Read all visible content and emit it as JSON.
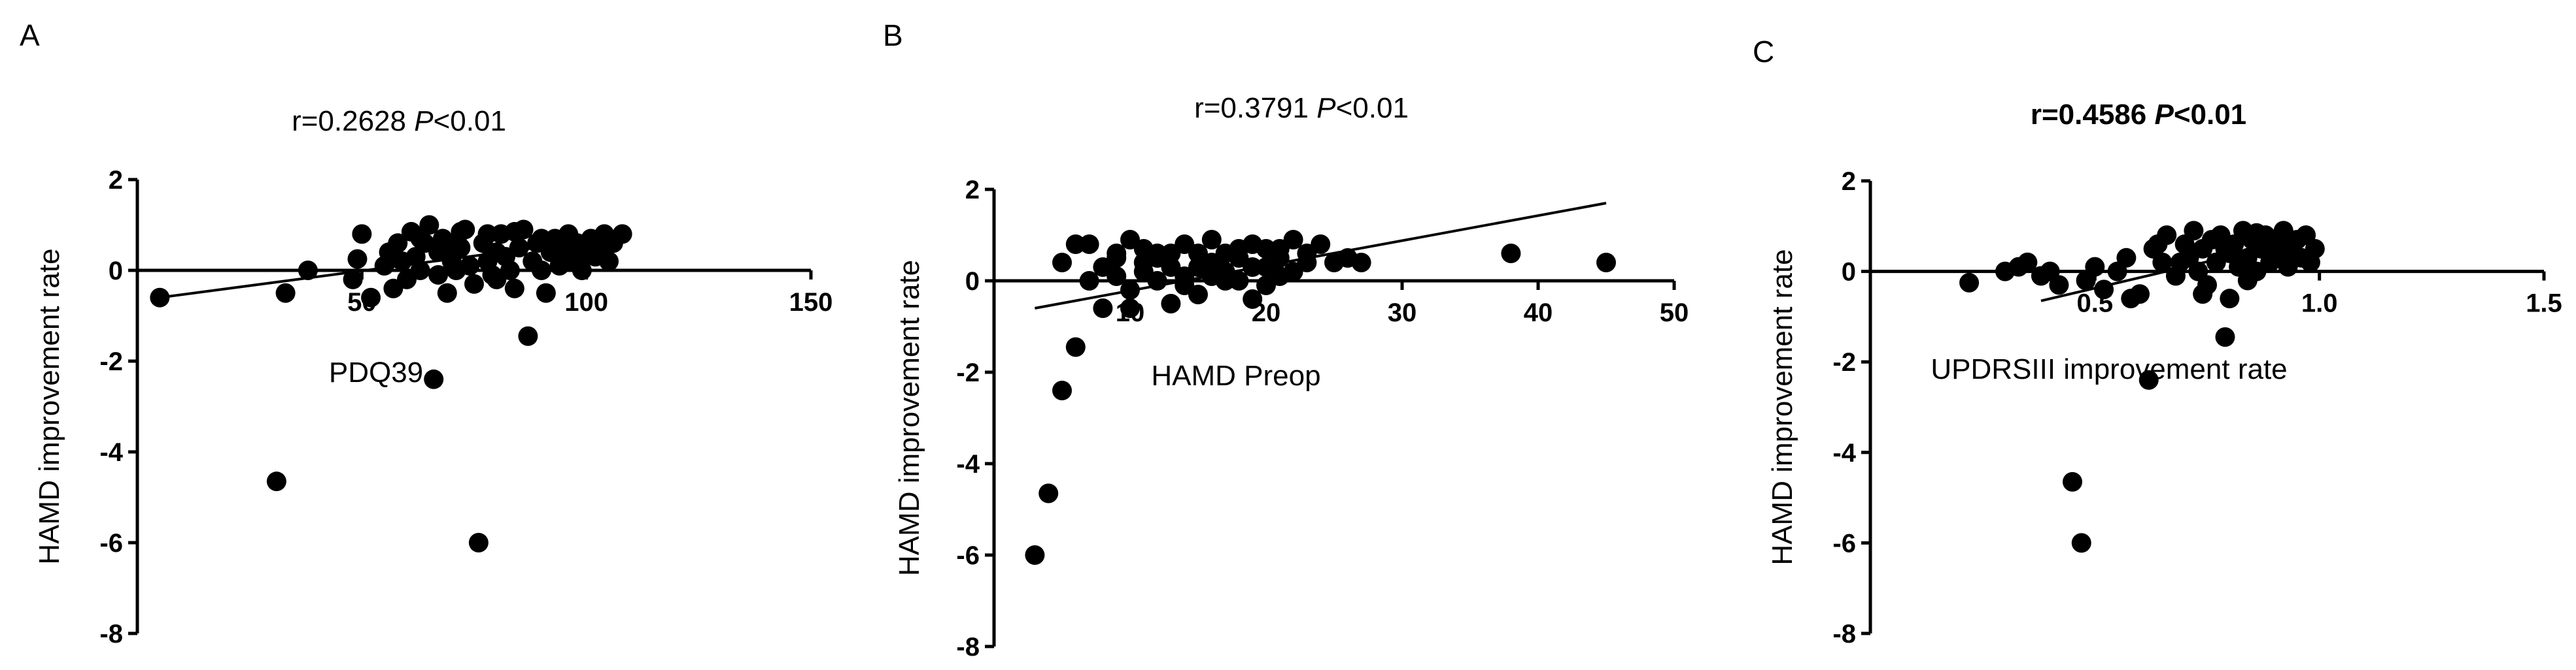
{
  "chart_data": [
    {
      "type": "scatter",
      "panel": "A",
      "title_r": "r=0.2628 ",
      "title_p": "P",
      "title_rest": "<0.01",
      "title_bold": false,
      "xlabel": "PDQ39",
      "ylabel": "HAMD improvement rate",
      "xlim": [
        0,
        150
      ],
      "ylim": [
        -8,
        2
      ],
      "xticks": [
        {
          "v": 50,
          "label": "50"
        },
        {
          "v": 100,
          "label": "100"
        },
        {
          "v": 150,
          "label": "150"
        }
      ],
      "yticks": [
        {
          "v": 2,
          "label": "2"
        },
        {
          "v": 0,
          "label": "0"
        },
        {
          "v": -2,
          "label": "-2"
        },
        {
          "v": -4,
          "label": "-4"
        },
        {
          "v": -6,
          "label": "-6"
        },
        {
          "v": -8,
          "label": "-8"
        }
      ],
      "fit": {
        "x1": 5,
        "y1": -0.6,
        "x2": 108,
        "y2": 0.75
      },
      "points": [
        [
          5,
          -0.6
        ],
        [
          31,
          -4.65
        ],
        [
          33,
          -0.5
        ],
        [
          38,
          0.0
        ],
        [
          48,
          -0.2
        ],
        [
          49,
          0.25
        ],
        [
          50,
          0.8
        ],
        [
          52,
          -0.6
        ],
        [
          55,
          0.1
        ],
        [
          56,
          0.4
        ],
        [
          58,
          0.6
        ],
        [
          59,
          0.2
        ],
        [
          60,
          -0.2
        ],
        [
          61,
          0.85
        ],
        [
          62,
          0.3
        ],
        [
          63,
          0.0
        ],
        [
          64,
          0.6
        ],
        [
          65,
          1.0
        ],
        [
          66,
          -2.4
        ],
        [
          67,
          0.4
        ],
        [
          68,
          0.7
        ],
        [
          69,
          -0.5
        ],
        [
          70,
          0.2
        ],
        [
          71,
          0.0
        ],
        [
          72,
          0.5
        ],
        [
          73,
          0.9
        ],
        [
          74,
          0.1
        ],
        [
          75,
          -0.3
        ],
        [
          76,
          -6.0
        ],
        [
          77,
          0.6
        ],
        [
          78,
          0.2
        ],
        [
          79,
          -0.1
        ],
        [
          80,
          0.4
        ],
        [
          81,
          0.8
        ],
        [
          82,
          0.3
        ],
        [
          83,
          0.0
        ],
        [
          84,
          -0.4
        ],
        [
          85,
          0.5
        ],
        [
          86,
          0.9
        ],
        [
          87,
          -1.45
        ],
        [
          88,
          0.2
        ],
        [
          89,
          0.6
        ],
        [
          90,
          0.0
        ],
        [
          91,
          -0.5
        ],
        [
          92,
          0.4
        ],
        [
          93,
          0.7
        ],
        [
          94,
          0.1
        ],
        [
          95,
          0.5
        ],
        [
          96,
          0.8
        ],
        [
          97,
          0.2
        ],
        [
          98,
          0.6
        ],
        [
          99,
          0.0
        ],
        [
          100,
          0.4
        ],
        [
          101,
          0.7
        ],
        [
          102,
          0.3
        ],
        [
          103,
          0.5
        ],
        [
          104,
          0.8
        ],
        [
          105,
          0.2
        ],
        [
          106,
          0.6
        ],
        [
          108,
          0.8
        ],
        [
          57,
          -0.4
        ],
        [
          63,
          0.7
        ],
        [
          67,
          -0.1
        ],
        [
          72,
          0.85
        ],
        [
          78,
          0.8
        ],
        [
          84,
          0.85
        ],
        [
          90,
          0.7
        ],
        [
          95,
          0.3
        ],
        [
          70,
          0.55
        ],
        [
          80,
          -0.2
        ]
      ]
    },
    {
      "type": "scatter",
      "panel": "B",
      "title_r": "r=0.3791 ",
      "title_p": "P",
      "title_rest": "<0.01",
      "title_bold": false,
      "xlabel": "HAMD Preop",
      "ylabel": "HAMD improvement rate",
      "xlim": [
        0,
        50
      ],
      "ylim": [
        -8,
        2
      ],
      "xticks": [
        {
          "v": 10,
          "label": "10"
        },
        {
          "v": 20,
          "label": "20"
        },
        {
          "v": 30,
          "label": "30"
        },
        {
          "v": 40,
          "label": "40"
        },
        {
          "v": 50,
          "label": "50"
        }
      ],
      "yticks": [
        {
          "v": 2,
          "label": "2"
        },
        {
          "v": 0,
          "label": "0"
        },
        {
          "v": -2,
          "label": "-2"
        },
        {
          "v": -4,
          "label": "-4"
        },
        {
          "v": -6,
          "label": "-6"
        },
        {
          "v": -8,
          "label": "-8"
        }
      ],
      "fit": {
        "x1": 3,
        "y1": -0.6,
        "x2": 45,
        "y2": 1.7
      },
      "points": [
        [
          3,
          -6.0
        ],
        [
          4,
          -4.65
        ],
        [
          5,
          -2.4
        ],
        [
          6,
          -1.45
        ],
        [
          5,
          0.4
        ],
        [
          6,
          0.8
        ],
        [
          7,
          0.0
        ],
        [
          7,
          0.8
        ],
        [
          8,
          0.3
        ],
        [
          8,
          -0.6
        ],
        [
          9,
          0.5
        ],
        [
          9,
          0.1
        ],
        [
          10,
          0.9
        ],
        [
          10,
          -0.2
        ],
        [
          11,
          0.4
        ],
        [
          11,
          0.7
        ],
        [
          12,
          0.0
        ],
        [
          12,
          0.5
        ],
        [
          13,
          -0.5
        ],
        [
          13,
          0.3
        ],
        [
          14,
          0.8
        ],
        [
          14,
          0.1
        ],
        [
          15,
          0.6
        ],
        [
          15,
          -0.3
        ],
        [
          16,
          0.4
        ],
        [
          16,
          0.9
        ],
        [
          17,
          0.2
        ],
        [
          17,
          0.6
        ],
        [
          18,
          0.0
        ],
        [
          18,
          0.5
        ],
        [
          19,
          0.8
        ],
        [
          19,
          -0.4
        ],
        [
          20,
          0.3
        ],
        [
          20,
          0.7
        ],
        [
          21,
          0.1
        ],
        [
          21,
          0.5
        ],
        [
          22,
          0.9
        ],
        [
          22,
          0.2
        ],
        [
          23,
          0.6
        ],
        [
          23,
          0.4
        ],
        [
          24,
          0.8
        ],
        [
          25,
          0.4
        ],
        [
          26,
          0.5
        ],
        [
          27,
          0.4
        ],
        [
          38,
          0.6
        ],
        [
          45,
          0.4
        ],
        [
          10,
          -0.6
        ],
        [
          12,
          0.6
        ],
        [
          14,
          -0.1
        ],
        [
          16,
          0.2
        ],
        [
          18,
          0.7
        ],
        [
          20,
          -0.1
        ],
        [
          13,
          0.6
        ],
        [
          15,
          0.3
        ],
        [
          17,
          0.0
        ],
        [
          19,
          0.3
        ],
        [
          11,
          0.2
        ],
        [
          9,
          0.6
        ],
        [
          21,
          0.7
        ],
        [
          16,
          0.1
        ]
      ]
    },
    {
      "type": "scatter",
      "panel": "C",
      "title_r": "r=0.4586 ",
      "title_p": "P",
      "title_rest": "<0.01",
      "title_bold": true,
      "xlabel": "UPDRSIII improvement rate",
      "ylabel": "HAMD improvement rate",
      "xlim": [
        0,
        1.5
      ],
      "ylim": [
        -8,
        2
      ],
      "xticks": [
        {
          "v": 0.5,
          "label": "0.5"
        },
        {
          "v": 1.0,
          "label": "1.0"
        },
        {
          "v": 1.5,
          "label": "1.5"
        }
      ],
      "yticks": [
        {
          "v": 2,
          "label": "2"
        },
        {
          "v": 0,
          "label": "0"
        },
        {
          "v": -2,
          "label": "-2"
        },
        {
          "v": -4,
          "label": "-4"
        },
        {
          "v": -6,
          "label": "-6"
        },
        {
          "v": -8,
          "label": "-8"
        }
      ],
      "fit": {
        "x1": 0.38,
        "y1": -0.65,
        "x2": 0.98,
        "y2": 0.75
      },
      "points": [
        [
          0.22,
          -0.25
        ],
        [
          0.3,
          0.0
        ],
        [
          0.33,
          0.1
        ],
        [
          0.35,
          0.2
        ],
        [
          0.38,
          -0.1
        ],
        [
          0.4,
          0.0
        ],
        [
          0.42,
          -0.3
        ],
        [
          0.45,
          -4.65
        ],
        [
          0.47,
          -6.0
        ],
        [
          0.48,
          -0.2
        ],
        [
          0.5,
          0.1
        ],
        [
          0.52,
          -0.4
        ],
        [
          0.55,
          0.0
        ],
        [
          0.57,
          0.3
        ],
        [
          0.6,
          -0.5
        ],
        [
          0.62,
          -2.4
        ],
        [
          0.63,
          0.5
        ],
        [
          0.65,
          0.2
        ],
        [
          0.66,
          0.8
        ],
        [
          0.68,
          -0.1
        ],
        [
          0.7,
          0.6
        ],
        [
          0.71,
          0.3
        ],
        [
          0.72,
          0.9
        ],
        [
          0.73,
          0.0
        ],
        [
          0.74,
          0.5
        ],
        [
          0.75,
          -0.3
        ],
        [
          0.76,
          0.7
        ],
        [
          0.77,
          0.2
        ],
        [
          0.78,
          0.8
        ],
        [
          0.79,
          -1.45
        ],
        [
          0.8,
          0.4
        ],
        [
          0.81,
          0.6
        ],
        [
          0.82,
          0.1
        ],
        [
          0.83,
          0.9
        ],
        [
          0.84,
          0.3
        ],
        [
          0.85,
          0.7
        ],
        [
          0.86,
          0.0
        ],
        [
          0.87,
          0.5
        ],
        [
          0.88,
          0.8
        ],
        [
          0.89,
          0.2
        ],
        [
          0.9,
          0.6
        ],
        [
          0.91,
          0.4
        ],
        [
          0.92,
          0.9
        ],
        [
          0.93,
          0.1
        ],
        [
          0.94,
          0.5
        ],
        [
          0.95,
          0.7
        ],
        [
          0.96,
          0.3
        ],
        [
          0.97,
          0.8
        ],
        [
          0.98,
          0.2
        ],
        [
          0.99,
          0.5
        ],
        [
          0.58,
          -0.6
        ],
        [
          0.64,
          0.6
        ],
        [
          0.69,
          0.2
        ],
        [
          0.74,
          -0.5
        ],
        [
          0.79,
          0.5
        ],
        [
          0.84,
          -0.2
        ],
        [
          0.89,
          0.7
        ],
        [
          0.8,
          -0.6
        ],
        [
          0.86,
          0.85
        ],
        [
          0.93,
          0.6
        ]
      ]
    }
  ]
}
